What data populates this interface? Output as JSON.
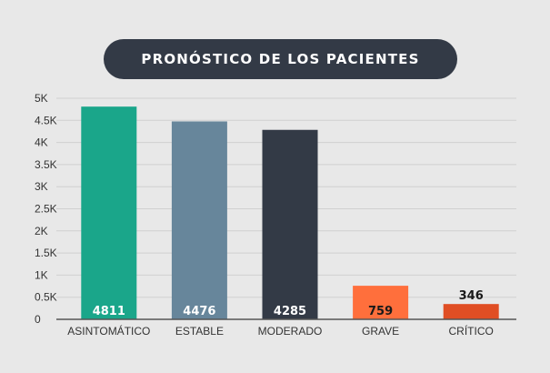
{
  "chart_data": {
    "type": "bar",
    "title": "PRONÓSTICO DE LOS PACIENTES",
    "categories": [
      "ASINTOMÁTICO",
      "ESTABLE",
      "MODERADO",
      "GRAVE",
      "CRÍTICO"
    ],
    "values": [
      4811,
      4476,
      4285,
      759,
      346
    ],
    "value_labels": [
      "4811",
      "4476",
      "4285",
      "759",
      "346"
    ],
    "colors": [
      "#1aa68a",
      "#67869b",
      "#333a46",
      "#ff6f3c",
      "#e04e24"
    ],
    "label_colors": [
      "#ffffff",
      "#ffffff",
      "#ffffff",
      "#1a1a1a",
      "#1a1a1a"
    ],
    "ylim": [
      0,
      5000
    ],
    "yticks": [
      0,
      500,
      1000,
      1500,
      2000,
      2500,
      3000,
      3500,
      4000,
      4500,
      5000
    ],
    "ytick_labels": [
      "0",
      "0.5K",
      "1K",
      "1.5K",
      "2K",
      "2.5K",
      "3K",
      "3.5K",
      "4K",
      "4.5K",
      "5K"
    ],
    "grid": true,
    "xlabel": "",
    "ylabel": ""
  }
}
